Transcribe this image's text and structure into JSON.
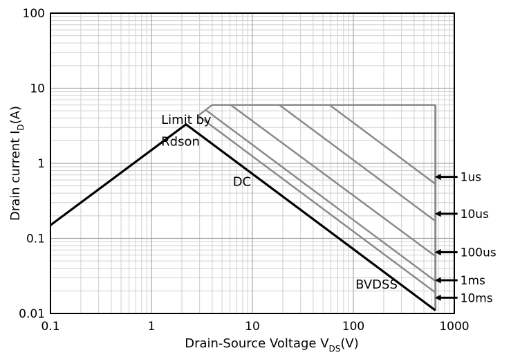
{
  "chart_data": {
    "type": "line",
    "x_scale": "log",
    "y_scale": "log",
    "xlim": [
      0.1,
      1000
    ],
    "ylim": [
      0.01,
      100
    ],
    "xlabel": "Drain-Source Voltage V",
    "xlabel_subscript": "DS",
    "xlabel_unit": "(V)",
    "ylabel": "Drain current I",
    "ylabel_subscript": "D",
    "ylabel_unit": "(A)",
    "x_ticks": [
      {
        "value": 0.1,
        "label": "0.1"
      },
      {
        "value": 1,
        "label": "1"
      },
      {
        "value": 10,
        "label": "10"
      },
      {
        "value": 100,
        "label": "100"
      },
      {
        "value": 1000,
        "label": "1000"
      }
    ],
    "y_ticks": [
      {
        "value": 0.01,
        "label": "0.01"
      },
      {
        "value": 0.1,
        "label": "0.1"
      },
      {
        "value": 1,
        "label": "1"
      },
      {
        "value": 10,
        "label": "10"
      },
      {
        "value": 100,
        "label": "100"
      }
    ],
    "grid": true,
    "series": [
      {
        "name": "DC",
        "color": "#000000",
        "x": [
          0.1,
          2.2,
          650
        ],
        "y": [
          0.15,
          3.3,
          0.011
        ]
      },
      {
        "name": "10ms",
        "color": "#8a8a8a",
        "x": [
          2.9,
          650
        ],
        "y": [
          4.3,
          0.019
        ]
      },
      {
        "name": "1ms",
        "color": "#8a8a8a",
        "x": [
          3.4,
          650
        ],
        "y": [
          5.2,
          0.027
        ]
      },
      {
        "name": "100us",
        "color": "#8a8a8a",
        "x": [
          6.1,
          650
        ],
        "y": [
          6,
          0.058
        ]
      },
      {
        "name": "10us",
        "color": "#8a8a8a",
        "x": [
          18.5,
          650
        ],
        "y": [
          6,
          0.17
        ]
      },
      {
        "name": "1us",
        "color": "#8a8a8a",
        "x": [
          58,
          650
        ],
        "y": [
          6,
          0.53
        ]
      }
    ],
    "limits": {
      "color": "#8a8a8a",
      "current_limit": {
        "x": [
          4,
          650
        ],
        "y": 6
      },
      "bvdss": {
        "x": 650,
        "y": [
          0.011,
          6
        ]
      }
    },
    "annotations": [
      {
        "text": "Limit by",
        "x": 1.25,
        "y": 3.35
      },
      {
        "text": "Rdson",
        "x": 1.25,
        "y": 1.72
      },
      {
        "text": "DC",
        "x": 6.4,
        "y": 0.5
      },
      {
        "text": "BVDSS",
        "x": 105,
        "y": 0.0214
      }
    ],
    "pulse_labels": [
      {
        "text": "1us",
        "y": 0.66
      },
      {
        "text": "10us",
        "y": 0.213
      },
      {
        "text": "100us",
        "y": 0.0655
      },
      {
        "text": "1ms",
        "y": 0.0277
      },
      {
        "text": "10ms",
        "y": 0.0162
      }
    ]
  }
}
